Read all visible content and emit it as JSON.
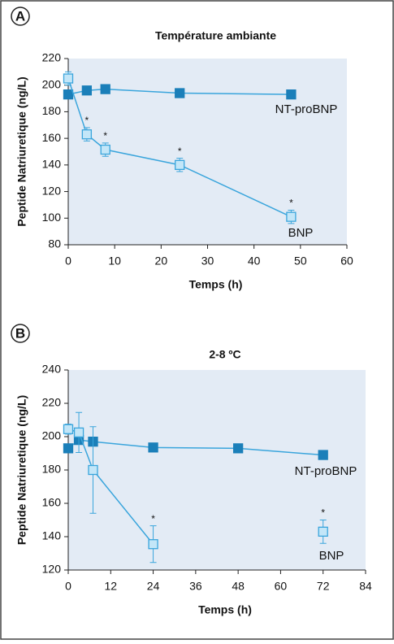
{
  "chart_data": [
    {
      "type": "line",
      "panel": "A",
      "title": "Température ambiante",
      "x_label": "Temps (h)",
      "y_label": "Peptide Natriuretique (ng/L)",
      "x": [
        0,
        4,
        8,
        24,
        48
      ],
      "xlim": [
        0,
        60
      ],
      "xticks": [
        0,
        10,
        20,
        30,
        40,
        50,
        60
      ],
      "ylim": [
        80,
        220
      ],
      "yticks": [
        80,
        100,
        120,
        140,
        160,
        180,
        200,
        220
      ],
      "series": [
        {
          "name": "NT-proBNP",
          "color": "#1b7fb9",
          "marker_fill": "#1b7fb9",
          "values": [
            193,
            196,
            197,
            194,
            193
          ],
          "errors": [
            null,
            null,
            null,
            null,
            null
          ],
          "marks": [
            null,
            null,
            null,
            null,
            null
          ]
        },
        {
          "name": "BNP",
          "color": "#3aa5dc",
          "marker_fill": "#c3e6f8",
          "values": [
            205,
            163,
            151.5,
            140,
            101
          ],
          "errors": [
            5,
            5,
            5,
            5,
            5
          ],
          "marks": [
            null,
            "*",
            "*",
            "*",
            "*"
          ]
        }
      ]
    },
    {
      "type": "line",
      "panel": "B",
      "title": "2-8 ºC",
      "x_label": "Temps (h)",
      "y_label": "Peptide Natriuretique (ng/L)",
      "x": [
        0,
        3,
        7,
        24,
        48,
        72
      ],
      "xlim": [
        0,
        84
      ],
      "xticks": [
        0,
        12,
        24,
        36,
        48,
        60,
        72,
        84
      ],
      "ylim": [
        120,
        240
      ],
      "yticks": [
        120,
        140,
        160,
        180,
        200,
        220,
        240
      ],
      "series": [
        {
          "name": "NT-proBNP",
          "color": "#1b7fb9",
          "marker_fill": "#1b7fb9",
          "values": [
            193,
            198,
            197,
            193.5,
            193,
            189
          ],
          "errors": [
            null,
            null,
            null,
            null,
            null,
            null
          ],
          "marks": [
            null,
            null,
            null,
            null,
            null,
            null
          ]
        },
        {
          "name": "BNP",
          "color": "#3aa5dc",
          "marker_fill": "#c3e6f8",
          "values": [
            204.5,
            202.5,
            180,
            135.5,
            null,
            143
          ],
          "errors": [
            3,
            12,
            26,
            11,
            null,
            7
          ],
          "marks": [
            null,
            null,
            null,
            "*",
            null,
            "*"
          ]
        }
      ]
    }
  ]
}
